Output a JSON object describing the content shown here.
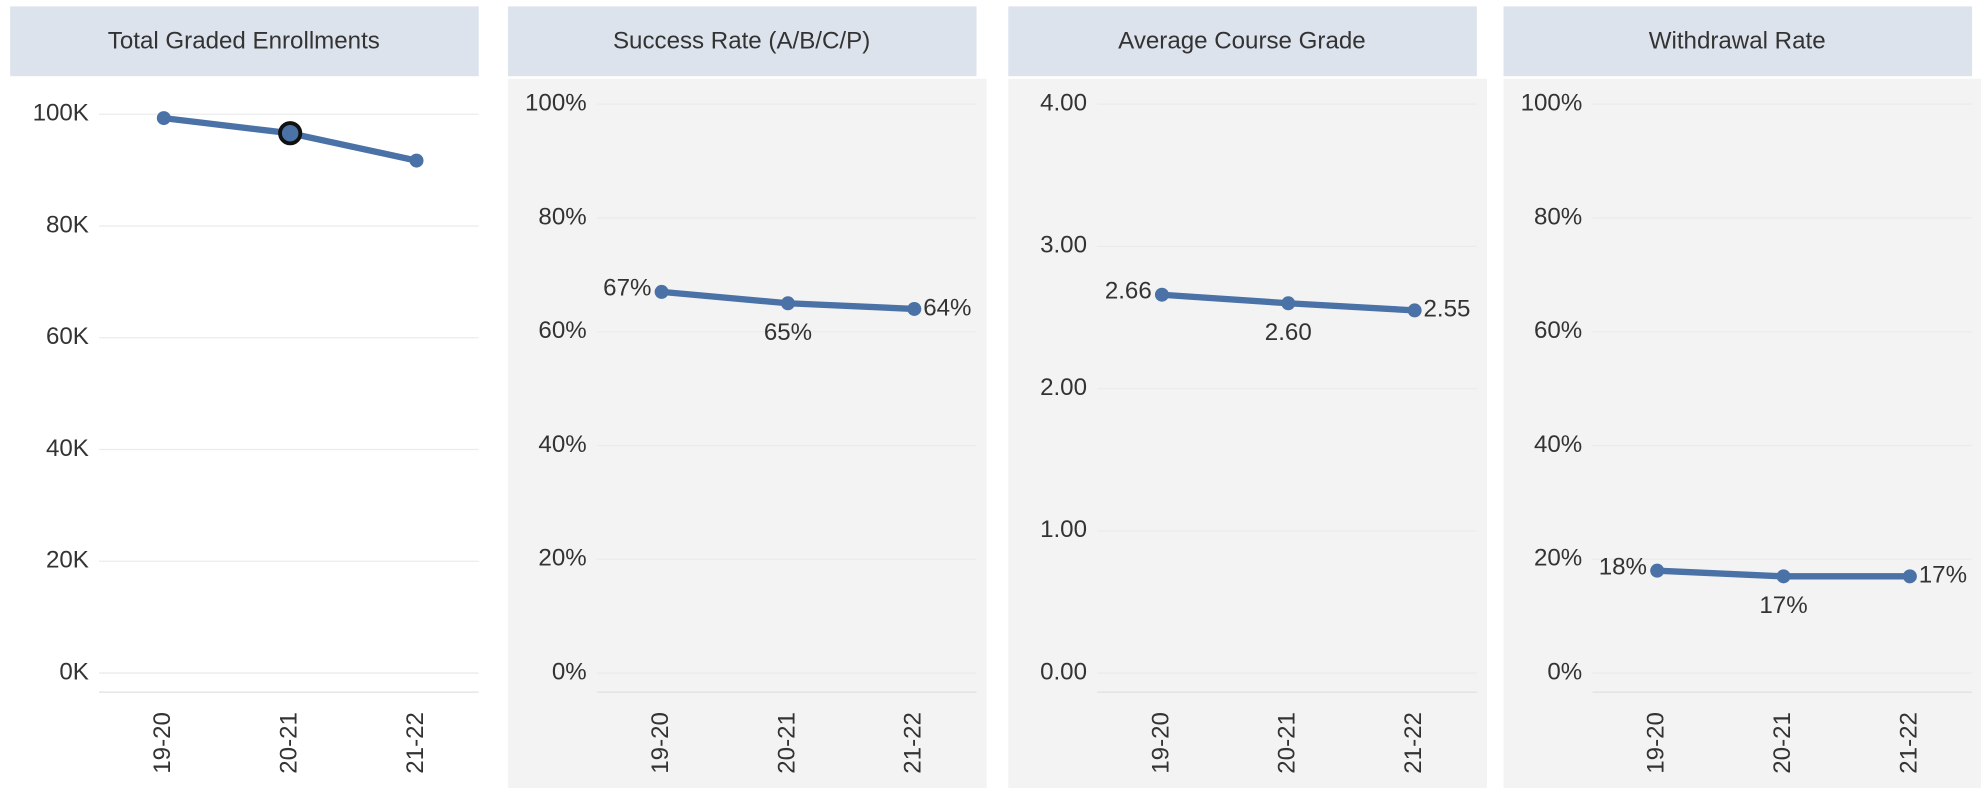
{
  "chart_data": [
    {
      "type": "line",
      "title": "Total Graded Enrollments",
      "categories": [
        "19-20",
        "20-21",
        "21-22"
      ],
      "values": [
        99300,
        96600,
        91700
      ],
      "color": "#4a72a6",
      "ylim": [
        0,
        101800
      ],
      "yticks": [
        {
          "value": 0,
          "label": "0K"
        },
        {
          "value": 20000,
          "label": "20K"
        },
        {
          "value": 40000,
          "label": "40K"
        },
        {
          "value": 60000,
          "label": "60K"
        },
        {
          "value": 80000,
          "label": "80K"
        },
        {
          "value": 100000,
          "label": "100K"
        }
      ],
      "grid": true,
      "background": "#ffffff"
    },
    {
      "type": "line",
      "title": "Success Rate (A/B/C/P)",
      "categories": [
        "19-20",
        "20-21",
        "21-22"
      ],
      "values": [
        67,
        65,
        64
      ],
      "value_labels": [
        "67%",
        "65%",
        "64%"
      ],
      "color": "#4a72a6",
      "ylim": [
        0,
        100
      ],
      "yticks": [
        {
          "value": 0,
          "label": "0%"
        },
        {
          "value": 20,
          "label": "20%"
        },
        {
          "value": 40,
          "label": "40%"
        },
        {
          "value": 60,
          "label": "60%"
        },
        {
          "value": 80,
          "label": "80%"
        },
        {
          "value": 100,
          "label": "100%"
        }
      ],
      "grid": true,
      "background": "#f3f3f3"
    },
    {
      "type": "line",
      "title": "Average Course Grade",
      "categories": [
        "19-20",
        "20-21",
        "21-22"
      ],
      "values": [
        2.66,
        2.6,
        2.55
      ],
      "value_labels": [
        "2.66",
        "2.60",
        "2.55"
      ],
      "color": "#4a72a6",
      "ylim": [
        0,
        4
      ],
      "yticks": [
        {
          "value": 0,
          "label": "0.00"
        },
        {
          "value": 1,
          "label": "1.00"
        },
        {
          "value": 2,
          "label": "2.00"
        },
        {
          "value": 3,
          "label": "3.00"
        },
        {
          "value": 4,
          "label": "4.00"
        }
      ],
      "grid": true,
      "background": "#f3f3f3"
    },
    {
      "type": "line",
      "title": "Withdrawal Rate",
      "categories": [
        "19-20",
        "20-21",
        "21-22"
      ],
      "values": [
        18,
        17,
        17
      ],
      "value_labels": [
        "18%",
        "17%",
        "17%"
      ],
      "color": "#4a72a6",
      "ylim": [
        0,
        100
      ],
      "yticks": [
        {
          "value": 0,
          "label": "0%"
        },
        {
          "value": 20,
          "label": "20%"
        },
        {
          "value": 40,
          "label": "40%"
        },
        {
          "value": 60,
          "label": "60%"
        },
        {
          "value": 80,
          "label": "80%"
        },
        {
          "value": 100,
          "label": "100%"
        }
      ],
      "grid": true,
      "background": "#f3f3f3"
    }
  ]
}
